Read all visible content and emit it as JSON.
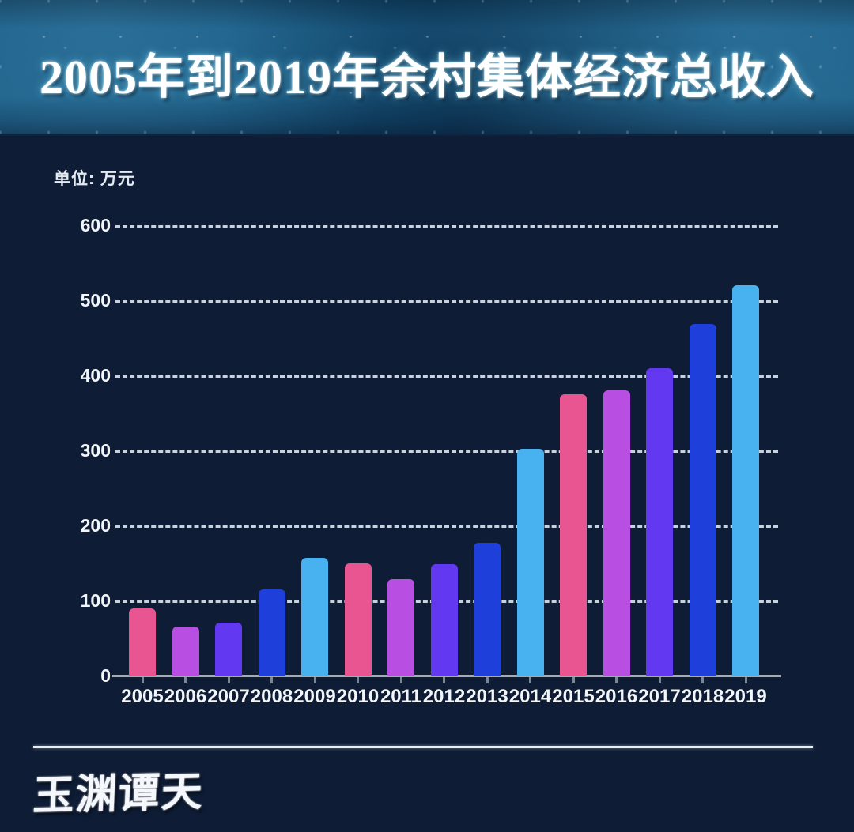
{
  "header": {
    "title": "2005年到2019年余村集体经济总收入"
  },
  "chart": {
    "unit_label": "单位: 万元"
  },
  "chart_data": {
    "type": "bar",
    "title": "2005年到2019年余村集体经济总收入",
    "unit": "万元",
    "categories": [
      "2005",
      "2006",
      "2007",
      "2008",
      "2009",
      "2010",
      "2011",
      "2012",
      "2013",
      "2014",
      "2015",
      "2016",
      "2017",
      "2018",
      "2019"
    ],
    "values": [
      91,
      66,
      72,
      116,
      158,
      151,
      130,
      149,
      178,
      303,
      376,
      381,
      411,
      470,
      521
    ],
    "xlabel": "",
    "ylabel": "单位: 万元",
    "ylim": [
      0,
      600
    ],
    "yticks": [
      0,
      100,
      200,
      300,
      400,
      500,
      600
    ],
    "grid": "horizontal dashed",
    "legend": "none",
    "bar_colors_cycle": [
      "#e85591",
      "#b94ee3",
      "#6239f1",
      "#1f3fda",
      "#47b2ef"
    ]
  },
  "footer": {
    "watermark": "玉渊谭天"
  },
  "colors": {
    "body_background": "#0e1d35",
    "header_background": "#1b5f87",
    "grid_color": "#e4eaf2",
    "axis_color": "#a2abb6",
    "text_color": "#f2f5f9"
  }
}
